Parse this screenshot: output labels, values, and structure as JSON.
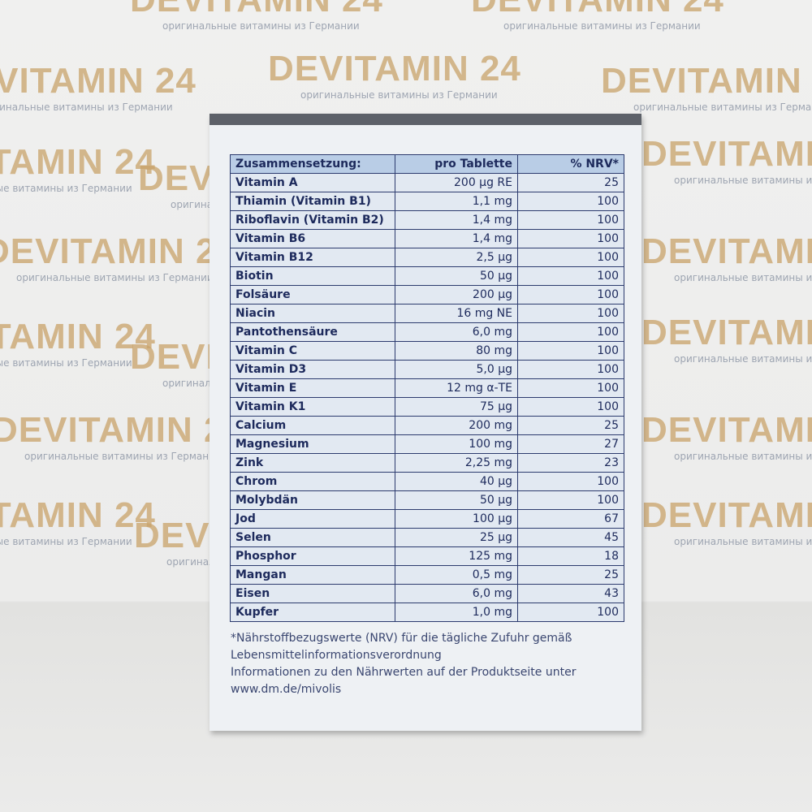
{
  "watermark": {
    "brand": "DEVITAMIN 24",
    "tagline": "оригинальные витамины из Германии"
  },
  "table": {
    "header": [
      "Zusammensetzung:",
      "pro Tablette",
      "% NRV*"
    ],
    "rows": [
      [
        "Vitamin A",
        "200 µg RE",
        25
      ],
      [
        "Thiamin (Vitamin B1)",
        "1,1 mg",
        100
      ],
      [
        "Riboflavin (Vitamin B2)",
        "1,4 mg",
        100
      ],
      [
        "Vitamin B6",
        "1,4 mg",
        100
      ],
      [
        "Vitamin B12",
        "2,5 µg",
        100
      ],
      [
        "Biotin",
        "50 µg",
        100
      ],
      [
        "Folsäure",
        "200 µg",
        100
      ],
      [
        "Niacin",
        "16 mg NE",
        100
      ],
      [
        "Pantothensäure",
        "6,0 mg",
        100
      ],
      [
        "Vitamin C",
        "80 mg",
        100
      ],
      [
        "Vitamin D3",
        "5,0 µg",
        100
      ],
      [
        "Vitamin E",
        "12 mg α-TE",
        100
      ],
      [
        "Vitamin K1",
        "75 µg",
        100
      ],
      [
        "Calcium",
        "200 mg",
        25
      ],
      [
        "Magnesium",
        "100 mg",
        27
      ],
      [
        "Zink",
        "2,25 mg",
        23
      ],
      [
        "Chrom",
        "40 µg",
        100
      ],
      [
        "Molybdän",
        "50 µg",
        100
      ],
      [
        "Jod",
        "100 µg",
        67
      ],
      [
        "Selen",
        "25 µg",
        45
      ],
      [
        "Phosphor",
        "125 mg",
        18
      ],
      [
        "Mangan",
        "0,5 mg",
        25
      ],
      [
        "Eisen",
        "6,0 mg",
        43
      ],
      [
        "Kupfer",
        "1,0 mg",
        100
      ]
    ]
  },
  "footnote": [
    "*Nährstoffbezugswerte (NRV) für die tägliche Zufuhr gemäß",
    "Lebensmittelinformationsverordnung",
    "Informationen zu den Nährwerten auf der Produktseite unter",
    "www.dm.de/mivolis"
  ]
}
